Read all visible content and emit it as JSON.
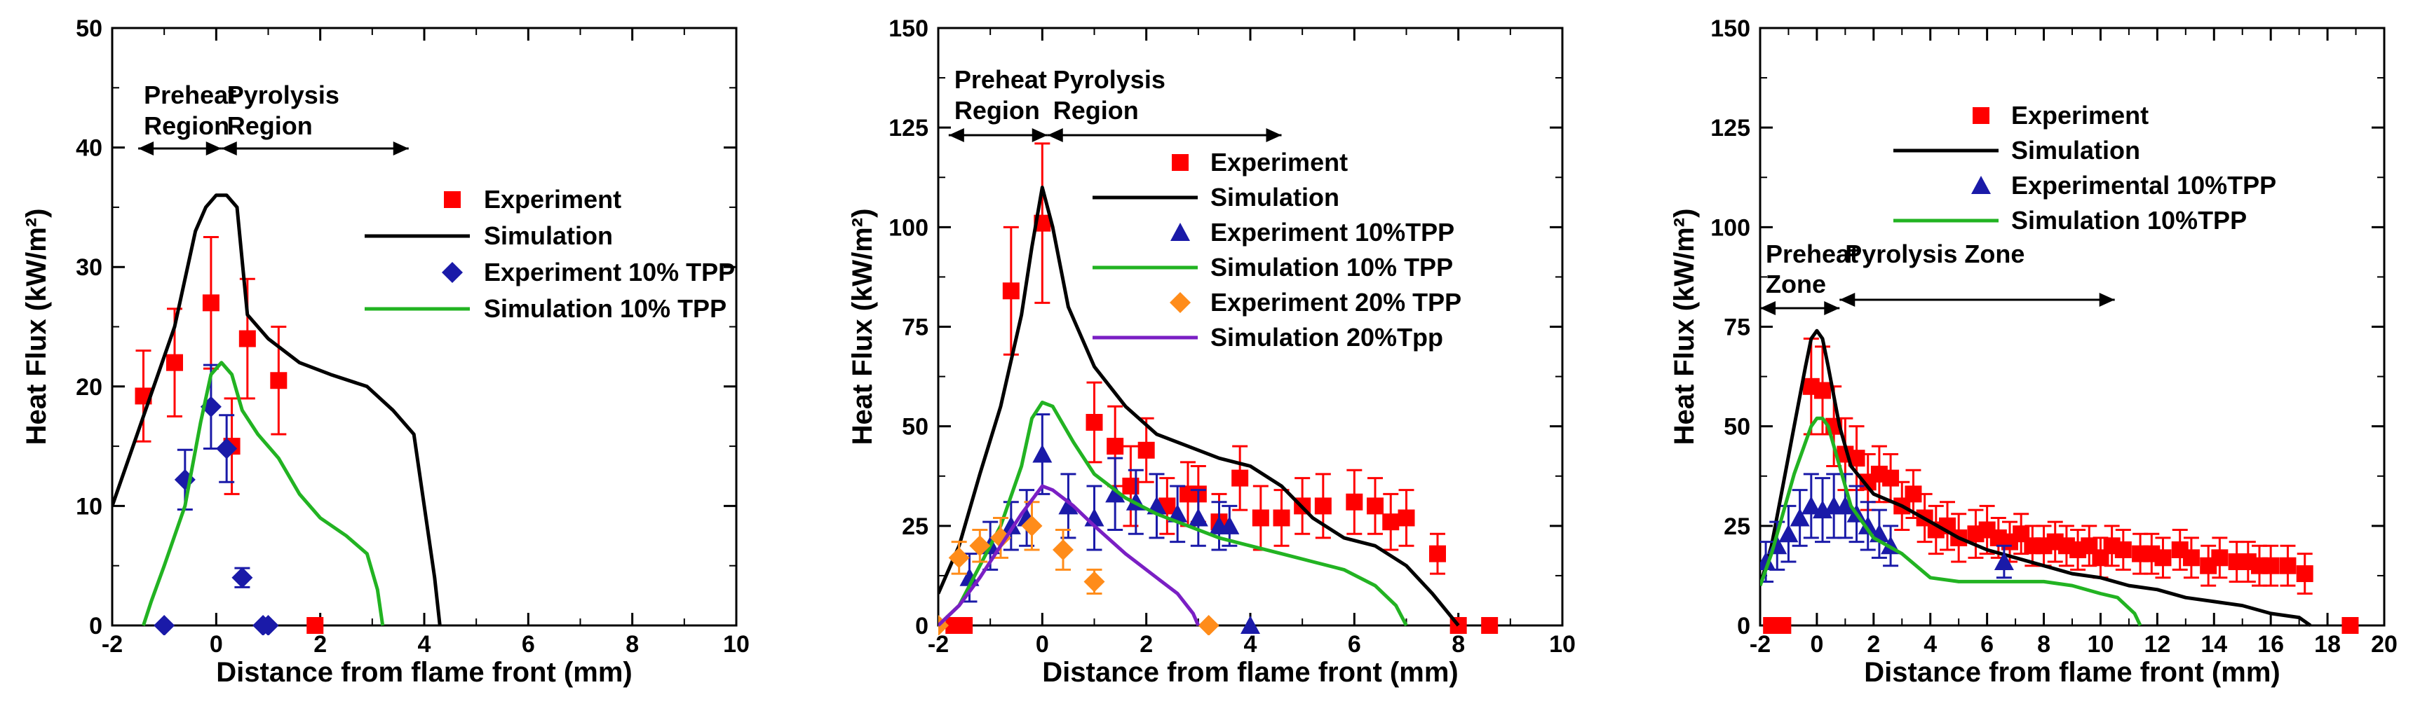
{
  "colors": {
    "experiment": "#ff0000",
    "simulation": "#000000",
    "tpp10_exp": "#1a1aa8",
    "tpp10_sim": "#22b322",
    "tpp20_exp": "#ff8c1a",
    "tpp20_sim": "#7a1fc4"
  },
  "chart_data": [
    {
      "type": "line",
      "xlabel": "Distance from flame front (mm)",
      "ylabel": "Heat Flux (kW/m²)",
      "xlim": [
        -2,
        10
      ],
      "ylim": [
        0,
        50
      ],
      "xticks": [
        -2,
        0,
        2,
        4,
        6,
        8,
        10
      ],
      "xtick_labels": [
        "-2",
        "0",
        "2",
        "4",
        "6",
        "8",
        "10"
      ],
      "yticks": [
        0,
        10,
        20,
        30,
        40,
        50
      ],
      "ytick_labels": [
        "0",
        "10",
        "20",
        "30",
        "40",
        "50"
      ],
      "regions": [
        {
          "label1": "Preheat",
          "label2": "Region",
          "x1": -1.5,
          "x2": 0.1
        },
        {
          "label1": "Pyrolysis",
          "label2": "Region",
          "x1": 0.1,
          "x2": 3.7
        }
      ],
      "legend": [
        "Experiment",
        "Simulation",
        "Experiment 10% TPP",
        "Simulation 10%  TPP"
      ],
      "series": [
        {
          "name": "Experiment",
          "kind": "scatter",
          "marker": "square",
          "color": "#ff0000",
          "x": [
            -1.4,
            -0.8,
            -0.1,
            0.3,
            0.6,
            1.2,
            1.9
          ],
          "y": [
            19.2,
            22,
            27,
            15,
            24,
            20.5,
            0
          ],
          "err": [
            3.8,
            4.5,
            5.5,
            4,
            5,
            4.5,
            0
          ]
        },
        {
          "name": "Simulation",
          "kind": "line",
          "color": "#000000",
          "x": [
            -2,
            -1.6,
            -1.2,
            -0.8,
            -0.4,
            -0.2,
            0,
            0.2,
            0.4,
            0.6,
            1.0,
            1.6,
            2.2,
            2.9,
            3.4,
            3.8,
            4.2,
            4.3
          ],
          "y": [
            10,
            15,
            20,
            25,
            33,
            35,
            36,
            36,
            35,
            26,
            24,
            22,
            21,
            20,
            18,
            16,
            4,
            0
          ]
        },
        {
          "name": "Experiment 10% TPP",
          "kind": "scatter",
          "marker": "diamond",
          "color": "#1a1aa8",
          "x": [
            -1.0,
            -0.6,
            -0.1,
            0.2,
            0.5,
            0.9,
            1.0
          ],
          "y": [
            0,
            12.2,
            18.3,
            14.8,
            4,
            0,
            0
          ],
          "err": [
            0,
            2.5,
            3.5,
            2.8,
            0.8,
            0,
            0
          ]
        },
        {
          "name": "Simulation 10%  TPP",
          "kind": "line",
          "color": "#22b322",
          "x": [
            -1.4,
            -1.25,
            -1.0,
            -0.6,
            -0.3,
            -0.1,
            0.1,
            0.3,
            0.5,
            0.8,
            1.2,
            1.6,
            2.0,
            2.5,
            2.9,
            3.1,
            3.2
          ],
          "y": [
            0,
            2,
            5,
            10,
            17,
            21,
            22,
            21,
            18,
            16,
            14,
            11,
            9,
            7.5,
            6,
            3,
            0
          ]
        }
      ]
    },
    {
      "type": "line",
      "xlabel": "Distance from flame front (mm)",
      "ylabel": "Heat Flux (kW/m²)",
      "xlim": [
        -2,
        10
      ],
      "ylim": [
        0,
        150
      ],
      "xticks": [
        -2,
        0,
        2,
        4,
        6,
        8,
        10
      ],
      "xtick_labels": [
        "-2",
        "0",
        "2",
        "4",
        "6",
        "8",
        "10"
      ],
      "yticks": [
        0,
        25,
        50,
        75,
        100,
        125,
        150
      ],
      "ytick_labels": [
        "0",
        "25",
        "50",
        "75",
        "100",
        "125",
        "150"
      ],
      "regions": [
        {
          "label1": "Preheat",
          "label2": "Region",
          "x1": -1.8,
          "x2": 0.1
        },
        {
          "label1": "Pyrolysis",
          "label2": "Region",
          "x1": 0.1,
          "x2": 4.6
        }
      ],
      "legend": [
        "Experiment",
        "Simulation",
        "Experiment 10%TPP",
        "Simulation 10% TPP",
        "Experiment 20% TPP",
        "Simulation 20%Tpp"
      ],
      "series": [
        {
          "name": "Experiment",
          "kind": "scatter",
          "marker": "square",
          "color": "#ff0000",
          "x": [
            -1.7,
            -1.5,
            -0.6,
            0.0,
            1.0,
            1.4,
            1.7,
            2.0,
            2.4,
            2.8,
            3.0,
            3.4,
            3.8,
            4.2,
            4.6,
            5.0,
            5.4,
            6.0,
            6.4,
            6.7,
            7.0,
            7.6,
            8.0,
            8.6
          ],
          "y": [
            0,
            0,
            84,
            101,
            51,
            45,
            35,
            44,
            30,
            33,
            33,
            26,
            37,
            27,
            27,
            30,
            30,
            31,
            30,
            26,
            27,
            18,
            0,
            0
          ],
          "err": [
            0,
            0,
            16,
            20,
            10,
            10,
            10,
            8,
            7,
            8,
            7,
            7,
            8,
            8,
            7,
            7,
            8,
            8,
            7,
            7,
            7,
            5,
            0,
            0
          ]
        },
        {
          "name": "Simulation",
          "kind": "line",
          "color": "#000000",
          "x": [
            -2,
            -1.6,
            -1.2,
            -0.8,
            -0.4,
            -0.2,
            0,
            0.2,
            0.5,
            1.0,
            1.6,
            2.2,
            2.8,
            3.4,
            4.0,
            4.6,
            5.2,
            5.8,
            6.4,
            7.0,
            7.5,
            8.0
          ],
          "y": [
            8,
            20,
            38,
            55,
            78,
            95,
            110,
            100,
            80,
            65,
            55,
            48,
            45,
            42,
            40,
            35,
            27,
            22,
            20,
            15,
            8,
            0
          ]
        },
        {
          "name": "Experiment 10%TPP",
          "kind": "scatter",
          "marker": "triangle",
          "color": "#1a1aa8",
          "x": [
            -1.4,
            -1.0,
            -0.6,
            -0.3,
            0.0,
            0.5,
            1.0,
            1.4,
            1.8,
            2.2,
            2.6,
            3.0,
            3.4,
            3.6,
            4.0
          ],
          "y": [
            12,
            20,
            25,
            27,
            43,
            30,
            27,
            33,
            31,
            30,
            28,
            27,
            25,
            25,
            0
          ],
          "err": [
            6,
            6,
            6,
            7,
            10,
            8,
            8,
            9,
            8,
            8,
            7,
            7,
            6,
            5,
            0
          ]
        },
        {
          "name": "Simulation 10% TPP",
          "kind": "line",
          "color": "#22b322",
          "x": [
            -2,
            -1.6,
            -1.2,
            -0.8,
            -0.4,
            -0.2,
            0,
            0.2,
            0.6,
            1.0,
            1.6,
            2.2,
            2.8,
            3.4,
            4.0,
            4.6,
            5.2,
            5.8,
            6.4,
            6.8,
            7.0
          ],
          "y": [
            0,
            5,
            15,
            25,
            40,
            52,
            56,
            55,
            46,
            38,
            32,
            28,
            25,
            22,
            20,
            18,
            16,
            14,
            10,
            5,
            0
          ]
        },
        {
          "name": "Experiment 20% TPP",
          "kind": "scatter",
          "marker": "diamond",
          "color": "#ff8c1a",
          "x": [
            -2.0,
            -1.6,
            -1.2,
            -0.8,
            -0.2,
            0.4,
            1.0,
            3.2
          ],
          "y": [
            0,
            17,
            20,
            22,
            25,
            19,
            11,
            0
          ],
          "err": [
            0,
            4,
            4,
            5,
            6,
            5,
            3,
            0
          ]
        },
        {
          "name": "Simulation 20%Tpp",
          "kind": "line",
          "color": "#7a1fc4",
          "x": [
            -2,
            -1.6,
            -1.2,
            -0.8,
            -0.4,
            0,
            0.2,
            0.6,
            1.0,
            1.6,
            2.2,
            2.6,
            2.9,
            3.0
          ],
          "y": [
            0,
            5,
            12,
            20,
            28,
            35,
            34,
            30,
            25,
            18,
            12,
            8,
            3,
            0
          ]
        }
      ]
    },
    {
      "type": "line",
      "xlabel": "Distance from flame front (mm)",
      "ylabel": "Heat Flux (kW/m²)",
      "xlim": [
        -2,
        20
      ],
      "ylim": [
        0,
        150
      ],
      "xticks": [
        -2,
        0,
        2,
        4,
        6,
        8,
        10,
        12,
        14,
        16,
        18,
        20
      ],
      "xtick_labels": [
        "-2",
        "0",
        "2",
        "4",
        "6",
        "8",
        "10",
        "12",
        "14",
        "16",
        "18",
        "20"
      ],
      "yticks": [
        0,
        25,
        50,
        75,
        100,
        125,
        150
      ],
      "ytick_labels": [
        "0",
        "25",
        "50",
        "75",
        "100",
        "125",
        "150"
      ],
      "regions": [
        {
          "label1": "Preheat",
          "label2": "Zone",
          "x1": -2,
          "x2": 0.8
        },
        {
          "label1": "Pyrolysis Zone",
          "label2": "",
          "x1": 0.8,
          "x2": 10.5
        }
      ],
      "legend": [
        "Experiment",
        "Simulation",
        "Experimental 10%TPP",
        "Simulation 10%TPP"
      ],
      "series": [
        {
          "name": "Experiment",
          "kind": "scatter",
          "marker": "square",
          "color": "#ff0000",
          "x": [
            -1.6,
            -1.2,
            -0.2,
            0.2,
            0.6,
            1.0,
            1.4,
            1.8,
            2.2,
            2.6,
            3.0,
            3.4,
            3.8,
            4.2,
            4.6,
            5.0,
            5.6,
            6.0,
            6.4,
            6.8,
            7.2,
            7.6,
            8.0,
            8.4,
            8.8,
            9.2,
            9.6,
            10.0,
            10.4,
            10.8,
            11.4,
            11.8,
            12.2,
            12.8,
            13.2,
            13.8,
            14.2,
            14.8,
            15.2,
            15.6,
            16.0,
            16.6,
            17.2,
            18.8
          ],
          "y": [
            0,
            0,
            60,
            59,
            50,
            43,
            42,
            36,
            38,
            37,
            30,
            33,
            27,
            24,
            25,
            22,
            23,
            24,
            22,
            21,
            23,
            20,
            20,
            21,
            20,
            19,
            20,
            17,
            20,
            19,
            18,
            18,
            17,
            19,
            17,
            15,
            17,
            16,
            16,
            15,
            15,
            15,
            13,
            0
          ],
          "err": [
            0,
            0,
            12,
            11,
            10,
            9,
            8,
            7,
            7,
            6,
            6,
            6,
            6,
            6,
            6,
            6,
            6,
            6,
            5,
            5,
            5,
            5,
            5,
            5,
            5,
            5,
            5,
            5,
            5,
            5,
            5,
            5,
            5,
            5,
            5,
            5,
            5,
            5,
            5,
            5,
            5,
            5,
            5,
            0
          ]
        },
        {
          "name": "Simulation",
          "kind": "line",
          "color": "#000000",
          "x": [
            -2,
            -1.6,
            -1.2,
            -0.8,
            -0.4,
            -0.2,
            0,
            0.2,
            0.4,
            0.8,
            1.2,
            2.0,
            3.0,
            4.0,
            5.0,
            6.0,
            7.0,
            8.0,
            9.0,
            10.0,
            11.0,
            12.0,
            13.0,
            14.0,
            15.0,
            16.0,
            17.0,
            17.4
          ],
          "y": [
            10,
            20,
            35,
            50,
            65,
            72,
            74,
            72,
            65,
            50,
            40,
            33,
            30,
            26,
            22,
            19,
            17,
            15,
            13,
            12,
            10,
            9,
            7,
            6,
            5,
            3,
            2,
            0
          ]
        },
        {
          "name": "Experimental 10%TPP",
          "kind": "scatter",
          "marker": "triangle",
          "color": "#1a1aa8",
          "x": [
            -1.8,
            -1.4,
            -1.0,
            -0.6,
            -0.2,
            0.2,
            0.6,
            1.0,
            1.4,
            1.8,
            2.2,
            2.6,
            6.6
          ],
          "y": [
            16,
            20,
            23,
            27,
            30,
            29,
            30,
            30,
            28,
            25,
            23,
            20,
            16
          ],
          "err": [
            5,
            6,
            7,
            7,
            8,
            8,
            8,
            8,
            7,
            6,
            6,
            5,
            4
          ]
        },
        {
          "name": "Simulation 10%TPP",
          "kind": "line",
          "color": "#22b322",
          "x": [
            -2,
            -1.6,
            -1.2,
            -0.8,
            -0.4,
            -0.2,
            0,
            0.2,
            0.4,
            0.8,
            1.2,
            2.0,
            3.0,
            4.0,
            5.0,
            6.0,
            7.0,
            8.0,
            9.0,
            10.0,
            10.6,
            11.2,
            11.4
          ],
          "y": [
            10,
            18,
            28,
            38,
            46,
            50,
            52,
            52,
            50,
            40,
            30,
            22,
            18,
            12,
            11,
            11,
            11,
            11,
            10,
            8,
            7,
            3,
            0
          ]
        }
      ]
    }
  ]
}
